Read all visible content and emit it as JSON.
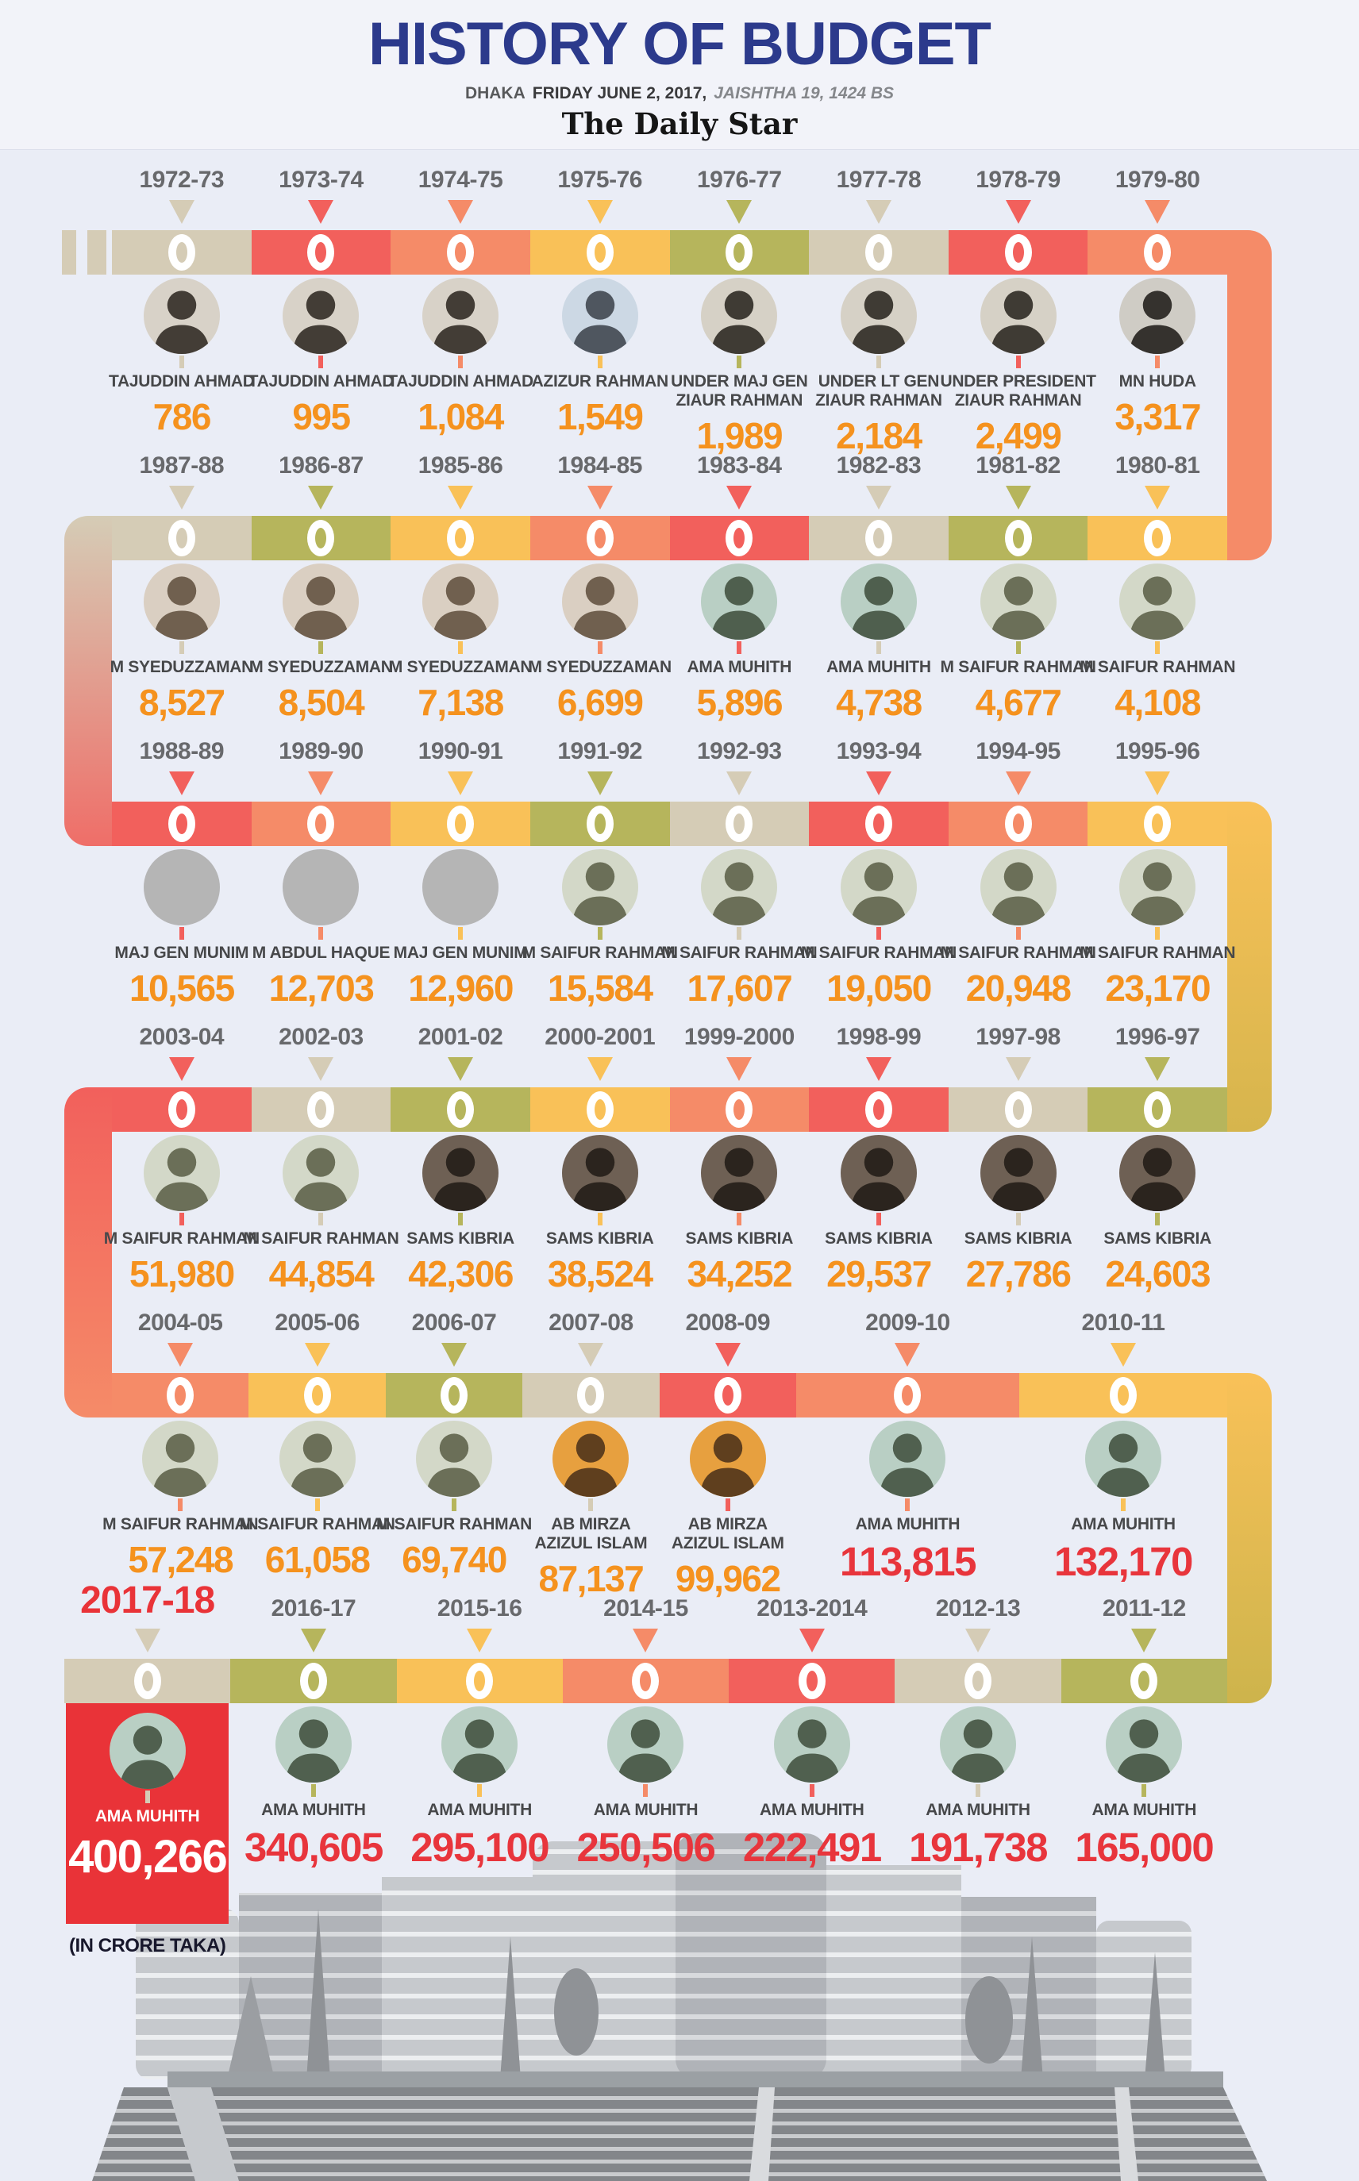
{
  "header": {
    "title": "HISTORY OF BUDGET",
    "dateline": {
      "city": "DHAKA",
      "date": "FRIDAY JUNE 2, 2017,",
      "bs": "JAISHTHA 19, 1424 BS"
    },
    "masthead": "The Daily Star"
  },
  "unit_note": "(IN CRORE TAKA)",
  "colors": {
    "background": "#eaedf6",
    "title_navy": "#2c3a8c",
    "year_gray": "#68696c",
    "name_gray": "#47484a",
    "value_orange": "#f5921e",
    "value_red": "#e8353c",
    "highlight_red": "#e93338",
    "segments": {
      "tan": "#d5ccb6",
      "red": "#f2605c",
      "salmon": "#f58b68",
      "yellow": "#f9c158",
      "olive": "#b6b55c",
      "gold": "#cdb44c"
    }
  },
  "chart_data": {
    "type": "table",
    "title": "HISTORY OF BUDGET",
    "unit": "crore taka",
    "columns": [
      "Fiscal year",
      "Finance minister",
      "Budget (crore taka)"
    ],
    "categories": [
      "1972-73",
      "1973-74",
      "1974-75",
      "1975-76",
      "1976-77",
      "1977-78",
      "1978-79",
      "1979-80",
      "1980-81",
      "1981-82",
      "1982-83",
      "1983-84",
      "1984-85",
      "1985-86",
      "1986-87",
      "1987-88",
      "1988-89",
      "1989-90",
      "1990-91",
      "1991-92",
      "1992-93",
      "1993-94",
      "1994-95",
      "1995-96",
      "1996-97",
      "1997-98",
      "1998-99",
      "1999-2000",
      "2000-2001",
      "2001-02",
      "2002-03",
      "2003-04",
      "2004-05",
      "2005-06",
      "2006-07",
      "2007-08",
      "2008-09",
      "2009-10",
      "2010-11",
      "2011-12",
      "2012-13",
      "2013-2014",
      "2014-15",
      "2015-16",
      "2016-17",
      "2017-18"
    ],
    "ministers": [
      "TAJUDDIN AHMAD",
      "TAJUDDIN AHMAD",
      "TAJUDDIN AHMAD",
      "AZIZUR RAHMAN",
      "UNDER MAJ GEN ZIAUR RAHMAN",
      "UNDER LT GEN ZIAUR RAHMAN",
      "UNDER PRESIDENT ZIAUR RAHMAN",
      "MN HUDA",
      "M SAIFUR RAHMAN",
      "M SAIFUR RAHMAN",
      "AMA MUHITH",
      "AMA MUHITH",
      "M SYEDUZZAMAN",
      "M SYEDUZZAMAN",
      "M SYEDUZZAMAN",
      "M SYEDUZZAMAN",
      "MAJ GEN MUNIM",
      "M ABDUL HAQUE",
      "MAJ GEN MUNIM",
      "M SAIFUR RAHMAN",
      "M SAIFUR RAHMAN",
      "M SAIFUR RAHMAN",
      "M SAIFUR RAHMAN",
      "M SAIFUR RAHMAN",
      "SAMS KIBRIA",
      "SAMS KIBRIA",
      "SAMS KIBRIA",
      "SAMS KIBRIA",
      "SAMS KIBRIA",
      "SAMS KIBRIA",
      "M SAIFUR RAHMAN",
      "M SAIFUR RAHMAN",
      "M SAIFUR RAHMAN",
      "M SAIFUR RAHMAN",
      "M SAIFUR RAHMAN",
      "AB MIRZA AZIZUL ISLAM",
      "AB MIRZA AZIZUL ISLAM",
      "AMA MUHITH",
      "AMA MUHITH",
      "AMA MUHITH",
      "AMA MUHITH",
      "AMA MUHITH",
      "AMA MUHITH",
      "AMA MUHITH",
      "AMA MUHITH",
      "AMA MUHITH"
    ],
    "values": [
      786,
      995,
      1084,
      1549,
      1989,
      2184,
      2499,
      3317,
      4108,
      4677,
      4738,
      5896,
      6699,
      7138,
      8504,
      8527,
      10565,
      12703,
      12960,
      15584,
      17607,
      19050,
      20948,
      23170,
      24603,
      27786,
      29537,
      34252,
      38524,
      42306,
      44854,
      51980,
      57248,
      61058,
      69740,
      87137,
      99962,
      113815,
      132170,
      165000,
      191738,
      222491,
      250506,
      295100,
      340605,
      400266
    ]
  },
  "rows": [
    {
      "entries": [
        {
          "year": "1972-73",
          "name": [
            "TAJUDDIN AHMAD"
          ],
          "value": "786",
          "seg": "tan",
          "value_style": "orange",
          "avatar": {
            "bg": "#d8d2c8",
            "fg": "#433d36"
          }
        },
        {
          "year": "1973-74",
          "name": [
            "TAJUDDIN AHMAD"
          ],
          "value": "995",
          "seg": "red",
          "value_style": "orange",
          "avatar": {
            "bg": "#d8d2c8",
            "fg": "#433d36"
          }
        },
        {
          "year": "1974-75",
          "name": [
            "TAJUDDIN AHMAD"
          ],
          "value": "1,084",
          "seg": "salmon",
          "value_style": "orange",
          "avatar": {
            "bg": "#d8d2c8",
            "fg": "#433d36"
          }
        },
        {
          "year": "1975-76",
          "name": [
            "AZIZUR RAHMAN"
          ],
          "value": "1,549",
          "seg": "yellow",
          "value_style": "orange",
          "avatar": {
            "bg": "#ccd8e4",
            "fg": "#4f565f"
          }
        },
        {
          "year": "1976-77",
          "name": [
            "UNDER MAJ GEN",
            "ZIAUR RAHMAN"
          ],
          "value": "1,989",
          "seg": "olive",
          "value_style": "orange",
          "avatar": {
            "bg": "#d6d1c6",
            "fg": "#3f3b34"
          }
        },
        {
          "year": "1977-78",
          "name": [
            "UNDER LT GEN",
            "ZIAUR RAHMAN"
          ],
          "value": "2,184",
          "seg": "tan",
          "value_style": "orange",
          "avatar": {
            "bg": "#d6d1c6",
            "fg": "#3f3b34"
          }
        },
        {
          "year": "1978-79",
          "name": [
            "UNDER PRESIDENT",
            "ZIAUR RAHMAN"
          ],
          "value": "2,499",
          "seg": "red",
          "value_style": "orange",
          "avatar": {
            "bg": "#d6d1c6",
            "fg": "#3f3b34"
          }
        },
        {
          "year": "1979-80",
          "name": [
            "MN HUDA"
          ],
          "value": "3,317",
          "seg": "salmon",
          "value_style": "orange",
          "avatar": {
            "bg": "#cfccc5",
            "fg": "#35322e"
          }
        }
      ]
    },
    {
      "entries": [
        {
          "year": "1987-88",
          "name": [
            "M SYEDUZZAMAN"
          ],
          "value": "8,527",
          "seg": "tan",
          "value_style": "orange",
          "avatar": {
            "bg": "#dacfc2",
            "fg": "#70604f"
          }
        },
        {
          "year": "1986-87",
          "name": [
            "M SYEDUZZAMAN"
          ],
          "value": "8,504",
          "seg": "olive",
          "value_style": "orange",
          "avatar": {
            "bg": "#dacfc2",
            "fg": "#70604f"
          }
        },
        {
          "year": "1985-86",
          "name": [
            "M SYEDUZZAMAN"
          ],
          "value": "7,138",
          "seg": "yellow",
          "value_style": "orange",
          "avatar": {
            "bg": "#dacfc2",
            "fg": "#70604f"
          }
        },
        {
          "year": "1984-85",
          "name": [
            "M SYEDUZZAMAN"
          ],
          "value": "6,699",
          "seg": "salmon",
          "value_style": "orange",
          "avatar": {
            "bg": "#dacfc2",
            "fg": "#70604f"
          }
        },
        {
          "year": "1983-84",
          "name": [
            "AMA MUHITH"
          ],
          "value": "5,896",
          "seg": "red",
          "value_style": "orange",
          "avatar": {
            "bg": "#b9cfc4",
            "fg": "#4f5f4e"
          }
        },
        {
          "year": "1982-83",
          "name": [
            "AMA MUHITH"
          ],
          "value": "4,738",
          "seg": "tan",
          "value_style": "orange",
          "avatar": {
            "bg": "#b9cfc4",
            "fg": "#4f5f4e"
          }
        },
        {
          "year": "1981-82",
          "name": [
            "M SAIFUR RAHMAN"
          ],
          "value": "4,677",
          "seg": "olive",
          "value_style": "orange",
          "avatar": {
            "bg": "#d3d8c8",
            "fg": "#6b6f58"
          }
        },
        {
          "year": "1980-81",
          "name": [
            "M SAIFUR RAHMAN"
          ],
          "value": "4,108",
          "seg": "yellow",
          "value_style": "orange",
          "avatar": {
            "bg": "#d3d8c8",
            "fg": "#6b6f58"
          }
        }
      ]
    },
    {
      "entries": [
        {
          "year": "1988-89",
          "name": [
            "MAJ GEN MUNIM"
          ],
          "value": "10,565",
          "seg": "red",
          "value_style": "orange",
          "avatar": {
            "bg": "#b5b5b5"
          }
        },
        {
          "year": "1989-90",
          "name": [
            "M ABDUL HAQUE"
          ],
          "value": "12,703",
          "seg": "salmon",
          "value_style": "orange",
          "avatar": {
            "bg": "#b5b5b5"
          }
        },
        {
          "year": "1990-91",
          "name": [
            "MAJ GEN MUNIM"
          ],
          "value": "12,960",
          "seg": "yellow",
          "value_style": "orange",
          "avatar": {
            "bg": "#b5b5b5"
          }
        },
        {
          "year": "1991-92",
          "name": [
            "M SAIFUR RAHMAN"
          ],
          "value": "15,584",
          "seg": "olive",
          "value_style": "orange",
          "avatar": {
            "bg": "#d3d8c8",
            "fg": "#6b6f58"
          }
        },
        {
          "year": "1992-93",
          "name": [
            "M SAIFUR  RAHMAN"
          ],
          "value": "17,607",
          "seg": "tan",
          "value_style": "orange",
          "avatar": {
            "bg": "#d3d8c8",
            "fg": "#6b6f58"
          }
        },
        {
          "year": "1993-94",
          "name": [
            "M SAIFUR RAHMAN"
          ],
          "value": "19,050",
          "seg": "red",
          "value_style": "orange",
          "avatar": {
            "bg": "#d3d8c8",
            "fg": "#6b6f58"
          }
        },
        {
          "year": "1994-95",
          "name": [
            "M SAIFUR RAHMAN"
          ],
          "value": "20,948",
          "seg": "salmon",
          "value_style": "orange",
          "avatar": {
            "bg": "#d3d8c8",
            "fg": "#6b6f58"
          }
        },
        {
          "year": "1995-96",
          "name": [
            "M SAIFUR RAHMAN"
          ],
          "value": "23,170",
          "seg": "yellow",
          "value_style": "orange",
          "avatar": {
            "bg": "#d3d8c8",
            "fg": "#6b6f58"
          }
        }
      ]
    },
    {
      "entries": [
        {
          "year": "2003-04",
          "name": [
            "M SAIFUR RAHMAN"
          ],
          "value": "51,980",
          "seg": "red",
          "value_style": "orange",
          "avatar": {
            "bg": "#d3d8c8",
            "fg": "#6b6f58"
          }
        },
        {
          "year": "2002-03",
          "name": [
            "M SAIFUR RAHMAN"
          ],
          "value": "44,854",
          "seg": "tan",
          "value_style": "orange",
          "avatar": {
            "bg": "#d3d8c8",
            "fg": "#6b6f58"
          }
        },
        {
          "year": "2001-02",
          "name": [
            "SAMS KIBRIA"
          ],
          "value": "42,306",
          "seg": "olive",
          "value_style": "orange",
          "avatar": {
            "bg": "#6e6054",
            "fg": "#2b241e"
          }
        },
        {
          "year": "2000-2001",
          "name": [
            "SAMS KIBRIA"
          ],
          "value": "38,524",
          "seg": "yellow",
          "value_style": "orange",
          "avatar": {
            "bg": "#6e6054",
            "fg": "#2b241e"
          }
        },
        {
          "year": "1999-2000",
          "name": [
            "SAMS KIBRIA"
          ],
          "value": "34,252",
          "seg": "salmon",
          "value_style": "orange",
          "avatar": {
            "bg": "#6e6054",
            "fg": "#2b241e"
          }
        },
        {
          "year": "1998-99",
          "name": [
            "SAMS KIBRIA"
          ],
          "value": "29,537",
          "seg": "red",
          "value_style": "orange",
          "avatar": {
            "bg": "#6e6054",
            "fg": "#2b241e"
          }
        },
        {
          "year": "1997-98",
          "name": [
            "SAMS KIBRIA"
          ],
          "value": "27,786",
          "seg": "tan",
          "value_style": "orange",
          "avatar": {
            "bg": "#6e6054",
            "fg": "#2b241e"
          }
        },
        {
          "year": "1996-97",
          "name": [
            "SAMS KIBRIA"
          ],
          "value": "24,603",
          "seg": "olive",
          "value_style": "orange",
          "avatar": {
            "bg": "#6e6054",
            "fg": "#2b241e"
          }
        }
      ]
    },
    {
      "entries": [
        {
          "year": "2004-05",
          "name": [
            "M SAIFUR RAHMAN"
          ],
          "value": "57,248",
          "seg": "salmon",
          "value_style": "orange",
          "avatar": {
            "bg": "#d3d8c8",
            "fg": "#6b6f58"
          }
        },
        {
          "year": "2005-06",
          "name": [
            "M SAIFUR RAHMAN"
          ],
          "value": "61,058",
          "seg": "yellow",
          "value_style": "orange",
          "avatar": {
            "bg": "#d3d8c8",
            "fg": "#6b6f58"
          }
        },
        {
          "year": "2006-07",
          "name": [
            "M SAIFUR RAHMAN"
          ],
          "value": "69,740",
          "seg": "olive",
          "value_style": "orange",
          "avatar": {
            "bg": "#d3d8c8",
            "fg": "#6b6f58"
          }
        },
        {
          "year": "2007-08",
          "name": [
            "AB MIRZA",
            "AZIZUL ISLAM"
          ],
          "value": "87,137",
          "seg": "tan",
          "value_style": "orange",
          "avatar": {
            "bg": "#e7a03f",
            "fg": "#5f3f1e"
          }
        },
        {
          "year": "2008-09",
          "name": [
            "AB MIRZA",
            "AZIZUL ISLAM"
          ],
          "value": "99,962",
          "seg": "red",
          "value_style": "orange",
          "avatar": {
            "bg": "#e7a03f",
            "fg": "#5f3f1e"
          }
        },
        {
          "year": "2009-10",
          "name": [
            "AMA MUHITH"
          ],
          "value": "113,815",
          "seg": "salmon",
          "value_style": "red",
          "avatar": {
            "bg": "#b9cfc4",
            "fg": "#50604f"
          }
        },
        {
          "year": "2010-11",
          "name": [
            "AMA MUHITH"
          ],
          "value": "132,170",
          "seg": "yellow",
          "value_style": "red",
          "avatar": {
            "bg": "#b9cfc4",
            "fg": "#50604f"
          }
        }
      ]
    },
    {
      "entries": [
        {
          "year": "2017-18",
          "name": [
            "AMA MUHITH"
          ],
          "value": "400,266",
          "seg": "tan",
          "value_style": "white",
          "highlight": true,
          "show_unit": true,
          "avatar": {
            "bg": "#b9cfc4",
            "fg": "#50604f"
          }
        },
        {
          "year": "2016-17",
          "name": [
            "AMA MUHITH"
          ],
          "value": "340,605",
          "seg": "olive",
          "value_style": "red",
          "avatar": {
            "bg": "#b9cfc4",
            "fg": "#50604f"
          }
        },
        {
          "year": "2015-16",
          "name": [
            "AMA MUHITH"
          ],
          "value": "295,100",
          "seg": "yellow",
          "value_style": "red",
          "avatar": {
            "bg": "#b9cfc4",
            "fg": "#50604f"
          }
        },
        {
          "year": "2014-15",
          "name": [
            "AMA MUHITH"
          ],
          "value": "250,506",
          "seg": "salmon",
          "value_style": "red",
          "avatar": {
            "bg": "#b9cfc4",
            "fg": "#50604f"
          }
        },
        {
          "year": "2013-2014",
          "name": [
            "AMA MUHITH"
          ],
          "value": "222,491",
          "seg": "red",
          "value_style": "red",
          "avatar": {
            "bg": "#b9cfc4",
            "fg": "#50604f"
          }
        },
        {
          "year": "2012-13",
          "name": [
            "AMA MUHITH"
          ],
          "value": "191,738",
          "seg": "tan",
          "value_style": "red",
          "avatar": {
            "bg": "#b9cfc4",
            "fg": "#50604f"
          }
        },
        {
          "year": "2011-12",
          "name": [
            "AMA MUHITH"
          ],
          "value": "165,000",
          "seg": "olive",
          "value_style": "red",
          "avatar": {
            "bg": "#b9cfc4",
            "fg": "#50604f"
          }
        }
      ]
    }
  ]
}
